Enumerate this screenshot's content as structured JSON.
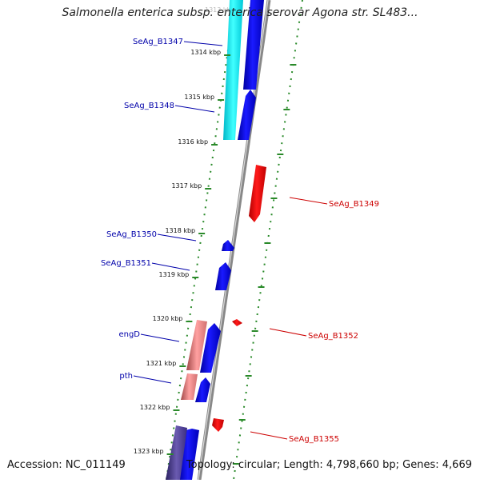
{
  "header": {
    "title": "Salmonella enterica subsp. enterica serovar Agona str. SL483..."
  },
  "footer": {
    "accession": "Accession: NC_011149",
    "topology": "Topology: circular; Length: 4,798,660 bp; Genes: 4,669"
  },
  "ruler": {
    "top_faded_label": "1313 kbp",
    "labels": [
      "1314 kbp",
      "1315 kbp",
      "1316 kbp",
      "1317 kbp",
      "1318 kbp",
      "1319 kbp",
      "1320 kbp",
      "1321 kbp",
      "1322 kbp",
      "1323 kbp"
    ]
  },
  "genes": {
    "left": [
      "SeAg_B1347",
      "SeAg_B1348",
      "SeAg_B1350",
      "SeAg_B1351",
      "engD",
      "pth"
    ],
    "right": [
      "SeAg_B1349",
      "SeAg_B1352",
      "SeAg_B1355"
    ]
  },
  "colors": {
    "forward_cds": "#0000ee",
    "reverse_cds": "#ee0000",
    "cyan_feature": "#00e0e8",
    "pink_feature": "#ee8888",
    "purple_feature": "#4a3a8c",
    "dotted_guide": "#2a8a2a",
    "backbone": "#888888",
    "label_blue": "#0000aa",
    "label_red": "#cc0000"
  }
}
